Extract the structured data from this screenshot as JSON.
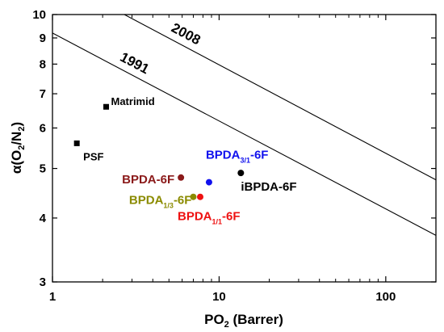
{
  "chart_data": {
    "type": "scatter",
    "title": "",
    "xlabel": {
      "main": "PO",
      "sub": "2",
      "tail": " (Barrer)"
    },
    "ylabel": {
      "main": "α(O",
      "sub1": "2",
      "mid": "/N",
      "sub2": "2",
      "tail": ")"
    },
    "x_scale": "log",
    "y_scale": "log",
    "xlim": [
      1,
      200
    ],
    "ylim": [
      3,
      10
    ],
    "x_ticks": [
      {
        "value": 1,
        "label": "1"
      },
      {
        "value": 10,
        "label": "10"
      },
      {
        "value": 100,
        "label": "100"
      }
    ],
    "y_ticks": [
      {
        "value": 3,
        "label": "3"
      },
      {
        "value": 4,
        "label": "4"
      },
      {
        "value": 5,
        "label": "5"
      },
      {
        "value": 6,
        "label": "6"
      },
      {
        "value": 7,
        "label": "7"
      },
      {
        "value": 8,
        "label": "8"
      },
      {
        "value": 9,
        "label": "9"
      },
      {
        "value": 10,
        "label": "10"
      }
    ],
    "upper_bounds": [
      {
        "label": "1991",
        "line": [
          [
            1,
            9.2
          ],
          [
            200,
            3.7
          ]
        ]
      },
      {
        "label": "2008",
        "line": [
          [
            2.7,
            10
          ],
          [
            200,
            4.75
          ]
        ]
      }
    ],
    "points": [
      {
        "label": {
          "main": "PSF"
        },
        "x": 1.4,
        "y": 5.6,
        "marker": "square",
        "color": "#000000",
        "label_color": "#000000"
      },
      {
        "label": {
          "main": "Matrimid"
        },
        "x": 2.1,
        "y": 6.6,
        "marker": "square",
        "color": "#000000",
        "label_color": "#000000"
      },
      {
        "label": {
          "main": "BPDA-6F"
        },
        "x": 5.9,
        "y": 4.8,
        "marker": "circle",
        "color": "#8B1A1A",
        "label_color": "#8B1A1A"
      },
      {
        "label": {
          "main": "BPDA",
          "sub": "1/3",
          "tail": "-6F"
        },
        "x": 7.0,
        "y": 4.4,
        "marker": "circle",
        "color": "#8B8B00",
        "label_color": "#8B8B00"
      },
      {
        "label": {
          "main": "BPDA",
          "sub": "1/1",
          "tail": "-6F"
        },
        "x": 7.7,
        "y": 4.4,
        "marker": "circle",
        "color": "#EE1111",
        "label_color": "#EE1111"
      },
      {
        "label": {
          "main": "BPDA",
          "sub": "3/1",
          "tail": "-6F"
        },
        "x": 8.7,
        "y": 4.7,
        "marker": "circle",
        "color": "#1111EE",
        "label_color": "#1111EE"
      },
      {
        "label": {
          "main": "iBPDA-6F"
        },
        "x": 13.5,
        "y": 4.9,
        "marker": "circle",
        "color": "#000000",
        "label_color": "#000000"
      }
    ],
    "grid": false,
    "legend": "none"
  }
}
